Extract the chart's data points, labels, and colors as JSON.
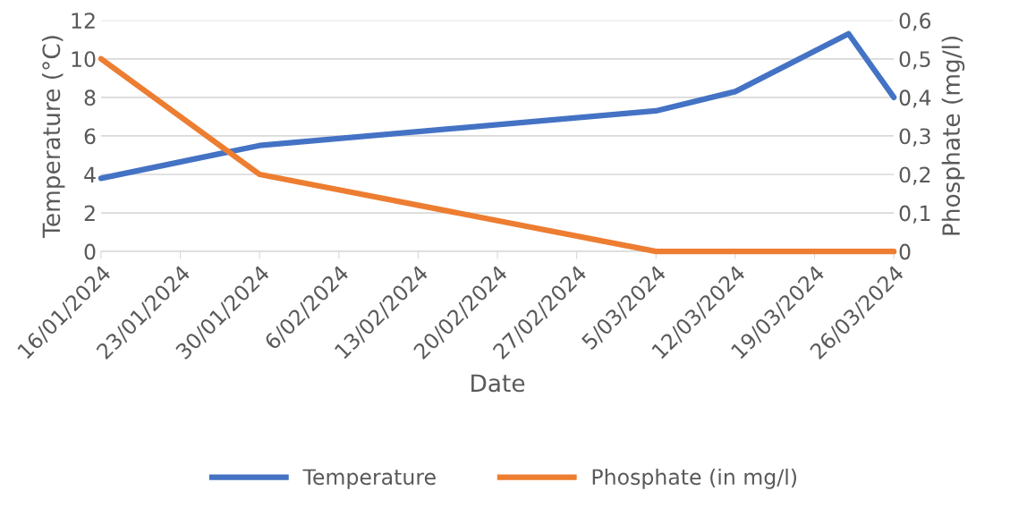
{
  "chart_data": {
    "type": "line",
    "xlabel": "Date",
    "ylabel": "Temperature (°C)",
    "y2label": "Phosphate (mg/l)",
    "x": [
      "2024-01-16",
      "2024-01-30",
      "2024-03-05",
      "2024-03-12",
      "2024-03-22",
      "2024-03-26"
    ],
    "series": [
      {
        "name": "Temperature",
        "color": "#4472c4",
        "values": [
          3.8,
          5.5,
          7.3,
          8.3,
          11.3,
          8.0
        ]
      },
      {
        "name": "Phosphate (in mg/l)",
        "color": "#ed7d31",
        "axis": "y2",
        "values": [
          0.5,
          0.2,
          0,
          0,
          0,
          0
        ]
      }
    ],
    "xlim": [
      "2024-01-16",
      "2024-03-26"
    ],
    "xticks": [
      {
        "value": "2024-01-16",
        "label": "16/01/2024"
      },
      {
        "value": "2024-01-23",
        "label": "23/01/2024"
      },
      {
        "value": "2024-01-30",
        "label": "30/01/2024"
      },
      {
        "value": "2024-02-06",
        "label": "6/02/2024"
      },
      {
        "value": "2024-02-13",
        "label": "13/02/2024"
      },
      {
        "value": "2024-02-20",
        "label": "20/02/2024"
      },
      {
        "value": "2024-02-27",
        "label": "27/02/2024"
      },
      {
        "value": "2024-03-05",
        "label": "5/03/2024"
      },
      {
        "value": "2024-03-12",
        "label": "12/03/2024"
      },
      {
        "value": "2024-03-19",
        "label": "19/03/2024"
      },
      {
        "value": "2024-03-26",
        "label": "26/03/2024"
      }
    ],
    "ylim": [
      0,
      12
    ],
    "yticks": [
      0,
      2,
      4,
      6,
      8,
      10,
      12
    ],
    "y2lim": [
      0,
      0.6
    ],
    "y2ticks": [
      0,
      {
        "value": 0.1,
        "label": "0,1"
      },
      {
        "value": 0.2,
        "label": "0,2"
      },
      {
        "value": 0.3,
        "label": "0,3"
      },
      {
        "value": 0.4,
        "label": "0,4"
      },
      {
        "value": 0.5,
        "label": "0,5"
      },
      {
        "value": 0.6,
        "label": "0,6"
      }
    ],
    "grid": "y",
    "legend": "bottom",
    "marker": "none",
    "line_style": "solid"
  }
}
